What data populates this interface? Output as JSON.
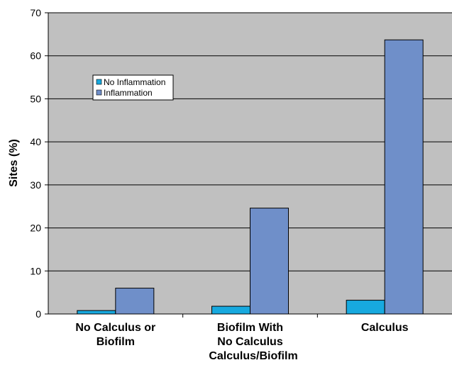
{
  "chart_data": {
    "type": "bar",
    "categories": [
      [
        "No Calculus or",
        "Biofilm"
      ],
      [
        "Biofilm With",
        "No Calculus"
      ],
      [
        "Calculus"
      ]
    ],
    "series": [
      {
        "name": "No Inflammation",
        "color": "#17a9df",
        "values": [
          0.8,
          1.8,
          3.2
        ]
      },
      {
        "name": "Inflammation",
        "color": "#6f8fc9",
        "values": [
          6.0,
          24.6,
          63.7
        ]
      }
    ],
    "xlabel": "Calculus/Biofilm",
    "ylabel": "Sites (%)",
    "ylim": [
      0,
      70
    ],
    "yticks": [
      0,
      10,
      20,
      30,
      40,
      50,
      60,
      70
    ],
    "grid": true,
    "legend": "upper-left",
    "plot_background": "#c0c0c0"
  }
}
